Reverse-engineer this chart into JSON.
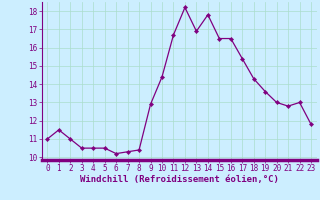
{
  "x": [
    0,
    1,
    2,
    3,
    4,
    5,
    6,
    7,
    8,
    9,
    10,
    11,
    12,
    13,
    14,
    15,
    16,
    17,
    18,
    19,
    20,
    21,
    22,
    23
  ],
  "y": [
    11.0,
    11.5,
    11.0,
    10.5,
    10.5,
    10.5,
    10.2,
    10.3,
    10.4,
    12.9,
    14.4,
    16.7,
    18.2,
    16.9,
    17.8,
    16.5,
    16.5,
    15.4,
    14.3,
    13.6,
    13.0,
    12.8,
    13.0,
    11.8
  ],
  "line_color": "#800080",
  "marker": "D",
  "marker_size": 2.2,
  "line_width": 0.9,
  "bg_color": "#cceeff",
  "grid_color": "#aaddcc",
  "xlabel": "Windchill (Refroidissement éolien,°C)",
  "xlabel_color": "#800080",
  "xlabel_fontsize": 6.5,
  "tick_color": "#800080",
  "tick_fontsize": 5.5,
  "ylim": [
    9.85,
    18.5
  ],
  "xlim": [
    -0.5,
    23.5
  ],
  "yticks": [
    10,
    11,
    12,
    13,
    14,
    15,
    16,
    17,
    18
  ],
  "xticks": [
    0,
    1,
    2,
    3,
    4,
    5,
    6,
    7,
    8,
    9,
    10,
    11,
    12,
    13,
    14,
    15,
    16,
    17,
    18,
    19,
    20,
    21,
    22,
    23
  ],
  "spine_color": "#800080",
  "bottom_bar_color": "#6600aa"
}
